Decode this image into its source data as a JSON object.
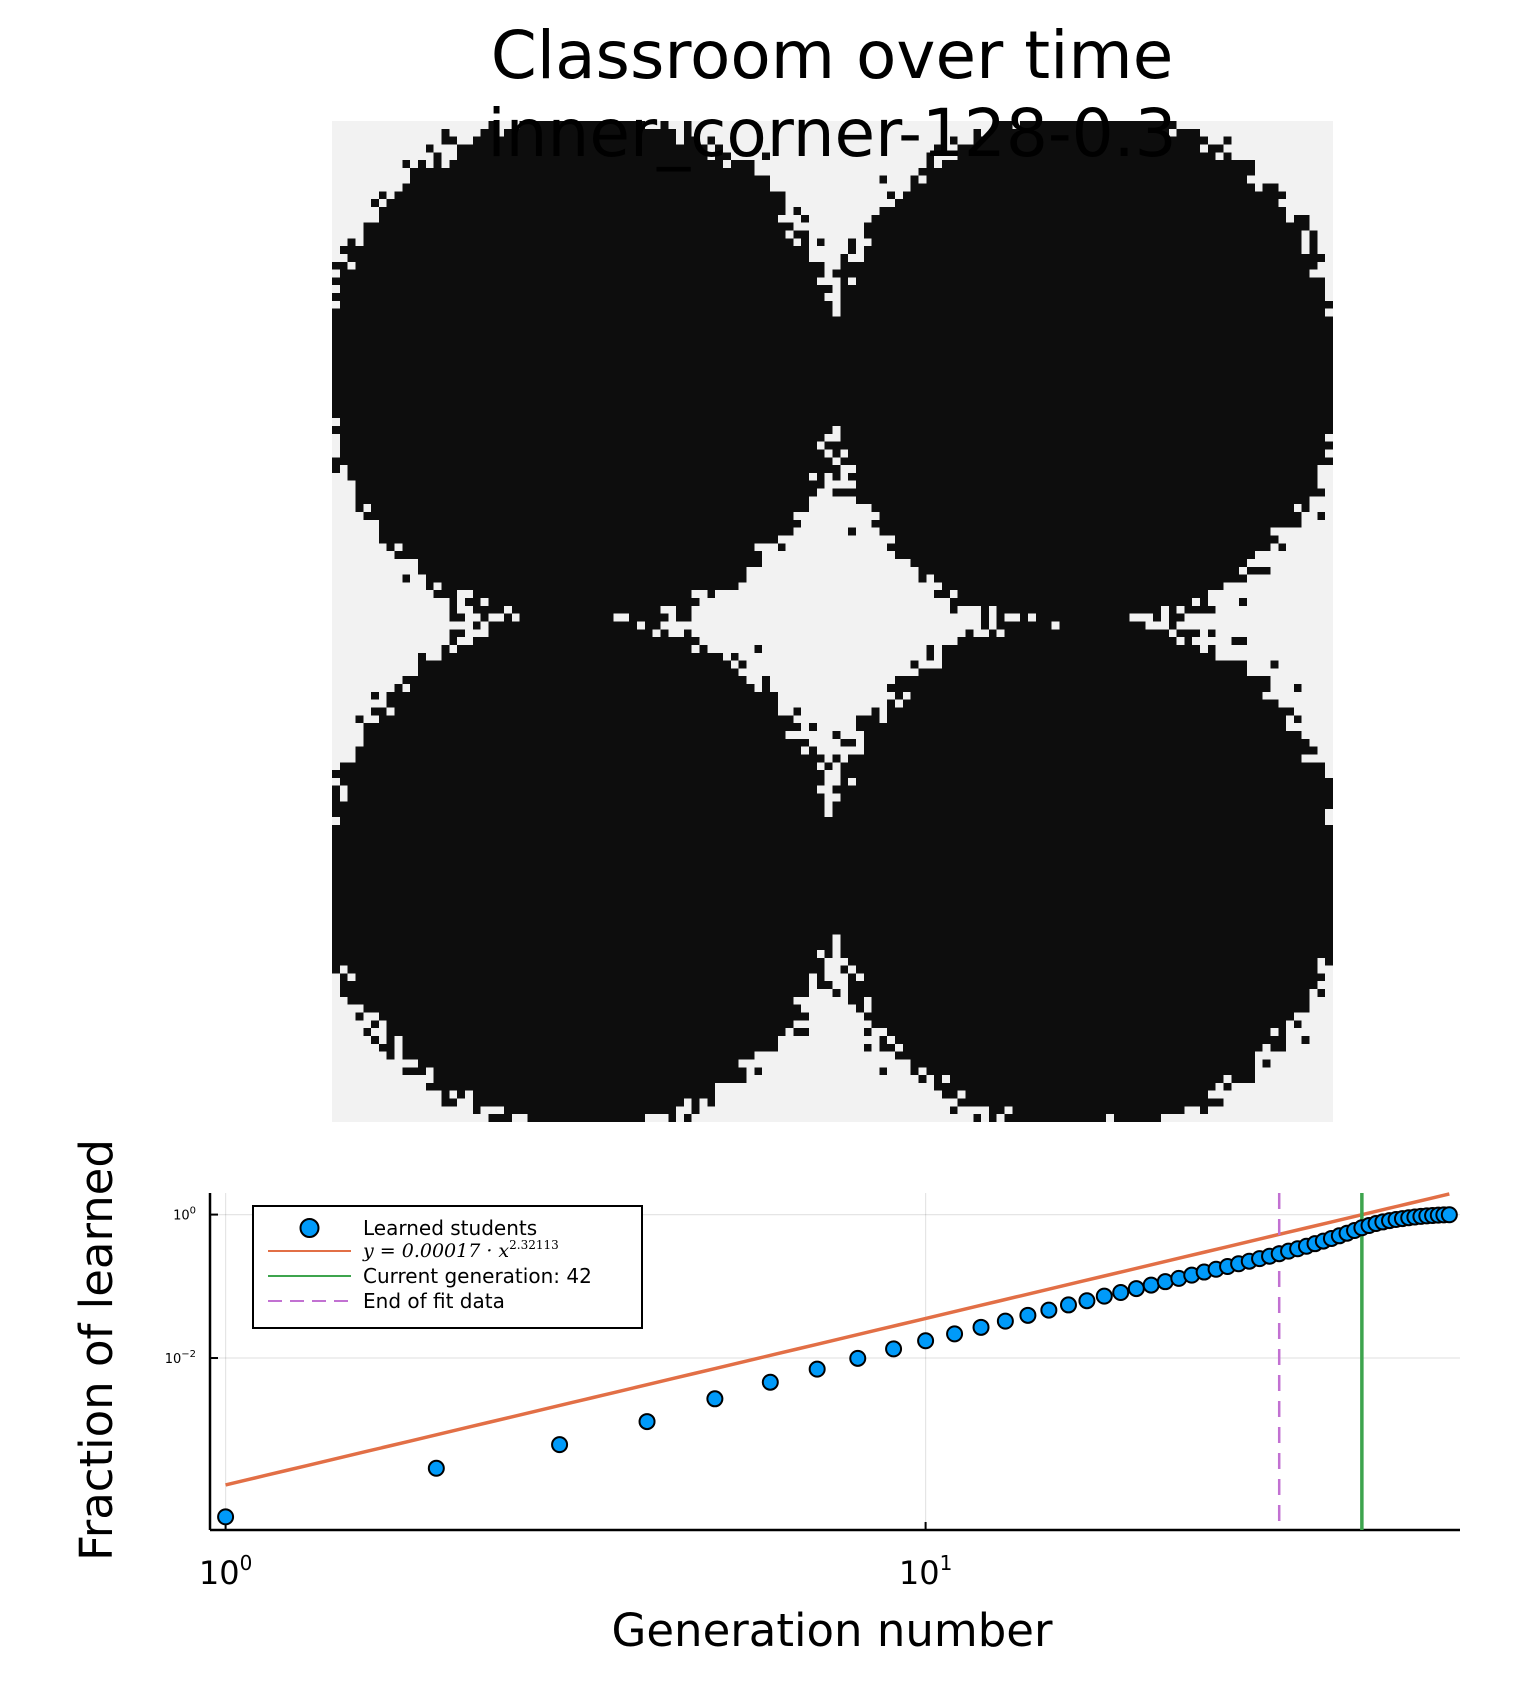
{
  "figure": {
    "title_line1": "Classroom over time",
    "title_line2": "inner_corner-128-0.3"
  },
  "colors": {
    "learned": "#0d0d0d",
    "unlearned": "#f2f2f2",
    "scatter": "#009af9",
    "fit": "#e26f46",
    "current": "#3da44d",
    "fit_end": "#c271d2"
  },
  "heatmap": {
    "type": "heatmap",
    "grid_size": 128,
    "description_values": "binary grid: learned (dark) vs not learned (light)",
    "blobs": [
      {
        "cx": 32,
        "cy": 32,
        "r": 33.5
      },
      {
        "cx": 96,
        "cy": 32,
        "r": 33.5
      },
      {
        "cx": 32,
        "cy": 96,
        "r": 33.5
      },
      {
        "cx": 96,
        "cy": 96,
        "r": 33.5
      }
    ],
    "noise_fraction": 0.3
  },
  "chart_data": {
    "type": "scatter",
    "xlabel": "Generation number",
    "ylabel": "Fraction of learned",
    "xscale": "log10",
    "yscale": "log10",
    "xlim": [
      0.95,
      58
    ],
    "ylim": [
      4e-05,
      2.0
    ],
    "x_ticks": [
      {
        "base": "10",
        "exp": "0",
        "value": 1
      },
      {
        "base": "10",
        "exp": "1",
        "value": 10
      }
    ],
    "y_ticks": [
      {
        "base": "10",
        "exp": "0",
        "value": 1
      },
      {
        "base": "10",
        "exp": "−2",
        "value": 0.01
      }
    ],
    "grid": true,
    "legend_position": "top-left",
    "series": [
      {
        "name": "Learned students",
        "kind": "scatter",
        "x": [
          1,
          2,
          3,
          4,
          5,
          6,
          7,
          8,
          9,
          10,
          11,
          12,
          13,
          14,
          15,
          16,
          17,
          18,
          19,
          20,
          21,
          22,
          23,
          24,
          25,
          26,
          27,
          28,
          29,
          30,
          31,
          32,
          33,
          34,
          35,
          36,
          37,
          38,
          39,
          40,
          41,
          42,
          43,
          44,
          45,
          46,
          47,
          48,
          49,
          50,
          51,
          52,
          53,
          54,
          55,
          56
        ],
        "y": [
          6.1e-05,
          0.00029,
          0.00062,
          0.0013,
          0.0027,
          0.0046,
          0.007,
          0.0099,
          0.0134,
          0.0174,
          0.0217,
          0.0268,
          0.0327,
          0.0394,
          0.0466,
          0.055,
          0.063,
          0.073,
          0.082,
          0.093,
          0.104,
          0.116,
          0.129,
          0.143,
          0.158,
          0.173,
          0.189,
          0.206,
          0.224,
          0.243,
          0.263,
          0.285,
          0.309,
          0.334,
          0.362,
          0.393,
          0.427,
          0.465,
          0.506,
          0.55,
          0.6,
          0.655,
          0.705,
          0.75,
          0.79,
          0.825,
          0.855,
          0.88,
          0.905,
          0.925,
          0.945,
          0.96,
          0.972,
          0.982,
          0.99,
          0.995
        ]
      },
      {
        "name": "y = 0.00017 · x^2.32113",
        "name_prefix": "y = 0.00017 · x",
        "name_exponent": "2.32113",
        "kind": "line",
        "coef": 0.00017,
        "exponent": 2.32113,
        "x_range": [
          1,
          56
        ]
      },
      {
        "name": "Current generation: 42",
        "kind": "vline",
        "x": 42
      },
      {
        "name": "End of fit data",
        "kind": "vline-dashed",
        "x": 32
      }
    ]
  }
}
